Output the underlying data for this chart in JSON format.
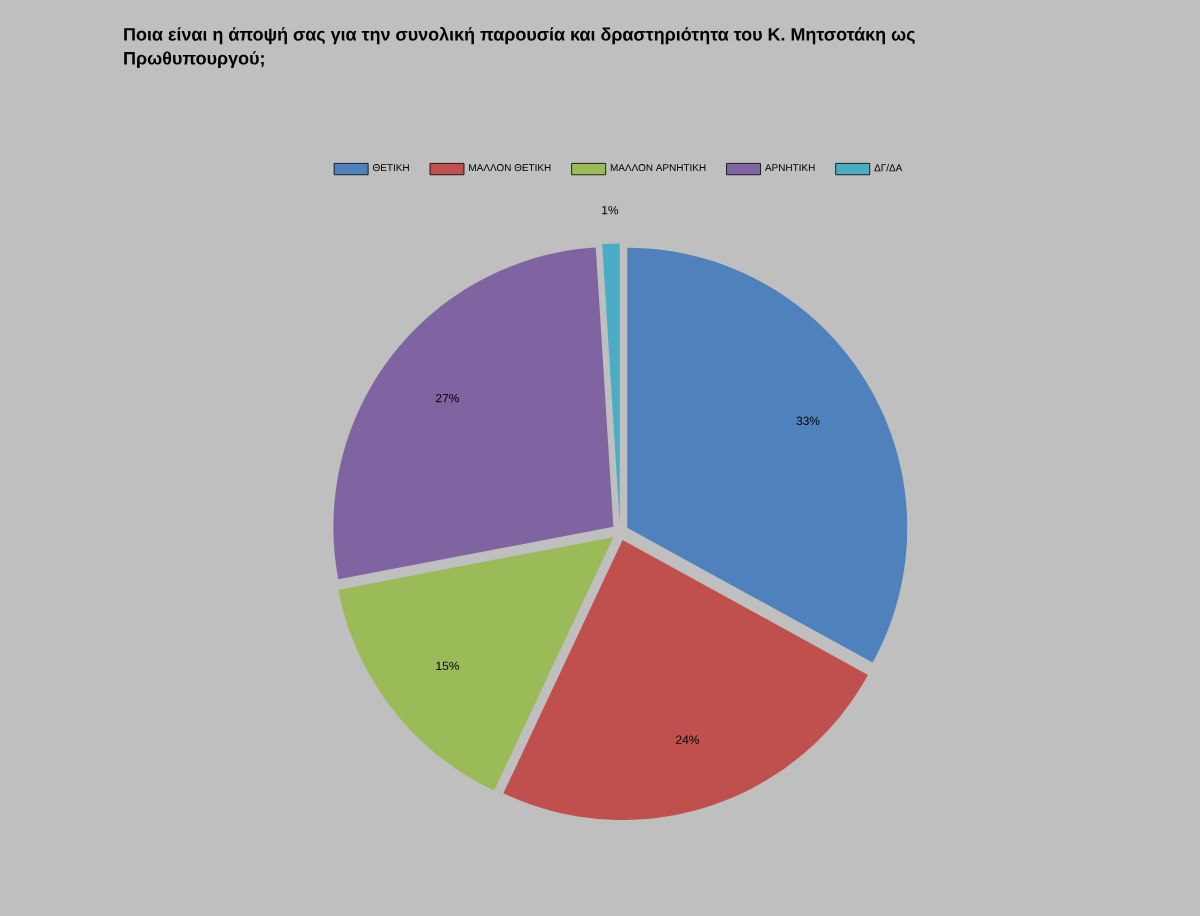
{
  "chart_data": {
    "type": "pie",
    "title": "Ποια είναι η άποψή σας για την συνολική παρουσία και δραστηριότητα του Κ. Μητσοτάκη ως Πρωθυπουργού;",
    "categories": [
      "ΘΕΤΙΚΗ",
      "ΜΑΛΛΟΝ ΘΕΤΙΚΗ",
      "ΜΑΛΛΟΝ ΑΡΝΗΤΙΚΗ",
      "ΑΡΝΗΤΙΚΗ",
      "ΔΓ/ΔΑ"
    ],
    "values": [
      33,
      24,
      15,
      27,
      1
    ],
    "value_labels": [
      "33%",
      "24%",
      "15%",
      "27%",
      "1%"
    ],
    "colors": [
      "#4f81bd",
      "#c0504d",
      "#9bbb59",
      "#8064a2",
      "#4bacc6"
    ],
    "legend": "top"
  }
}
